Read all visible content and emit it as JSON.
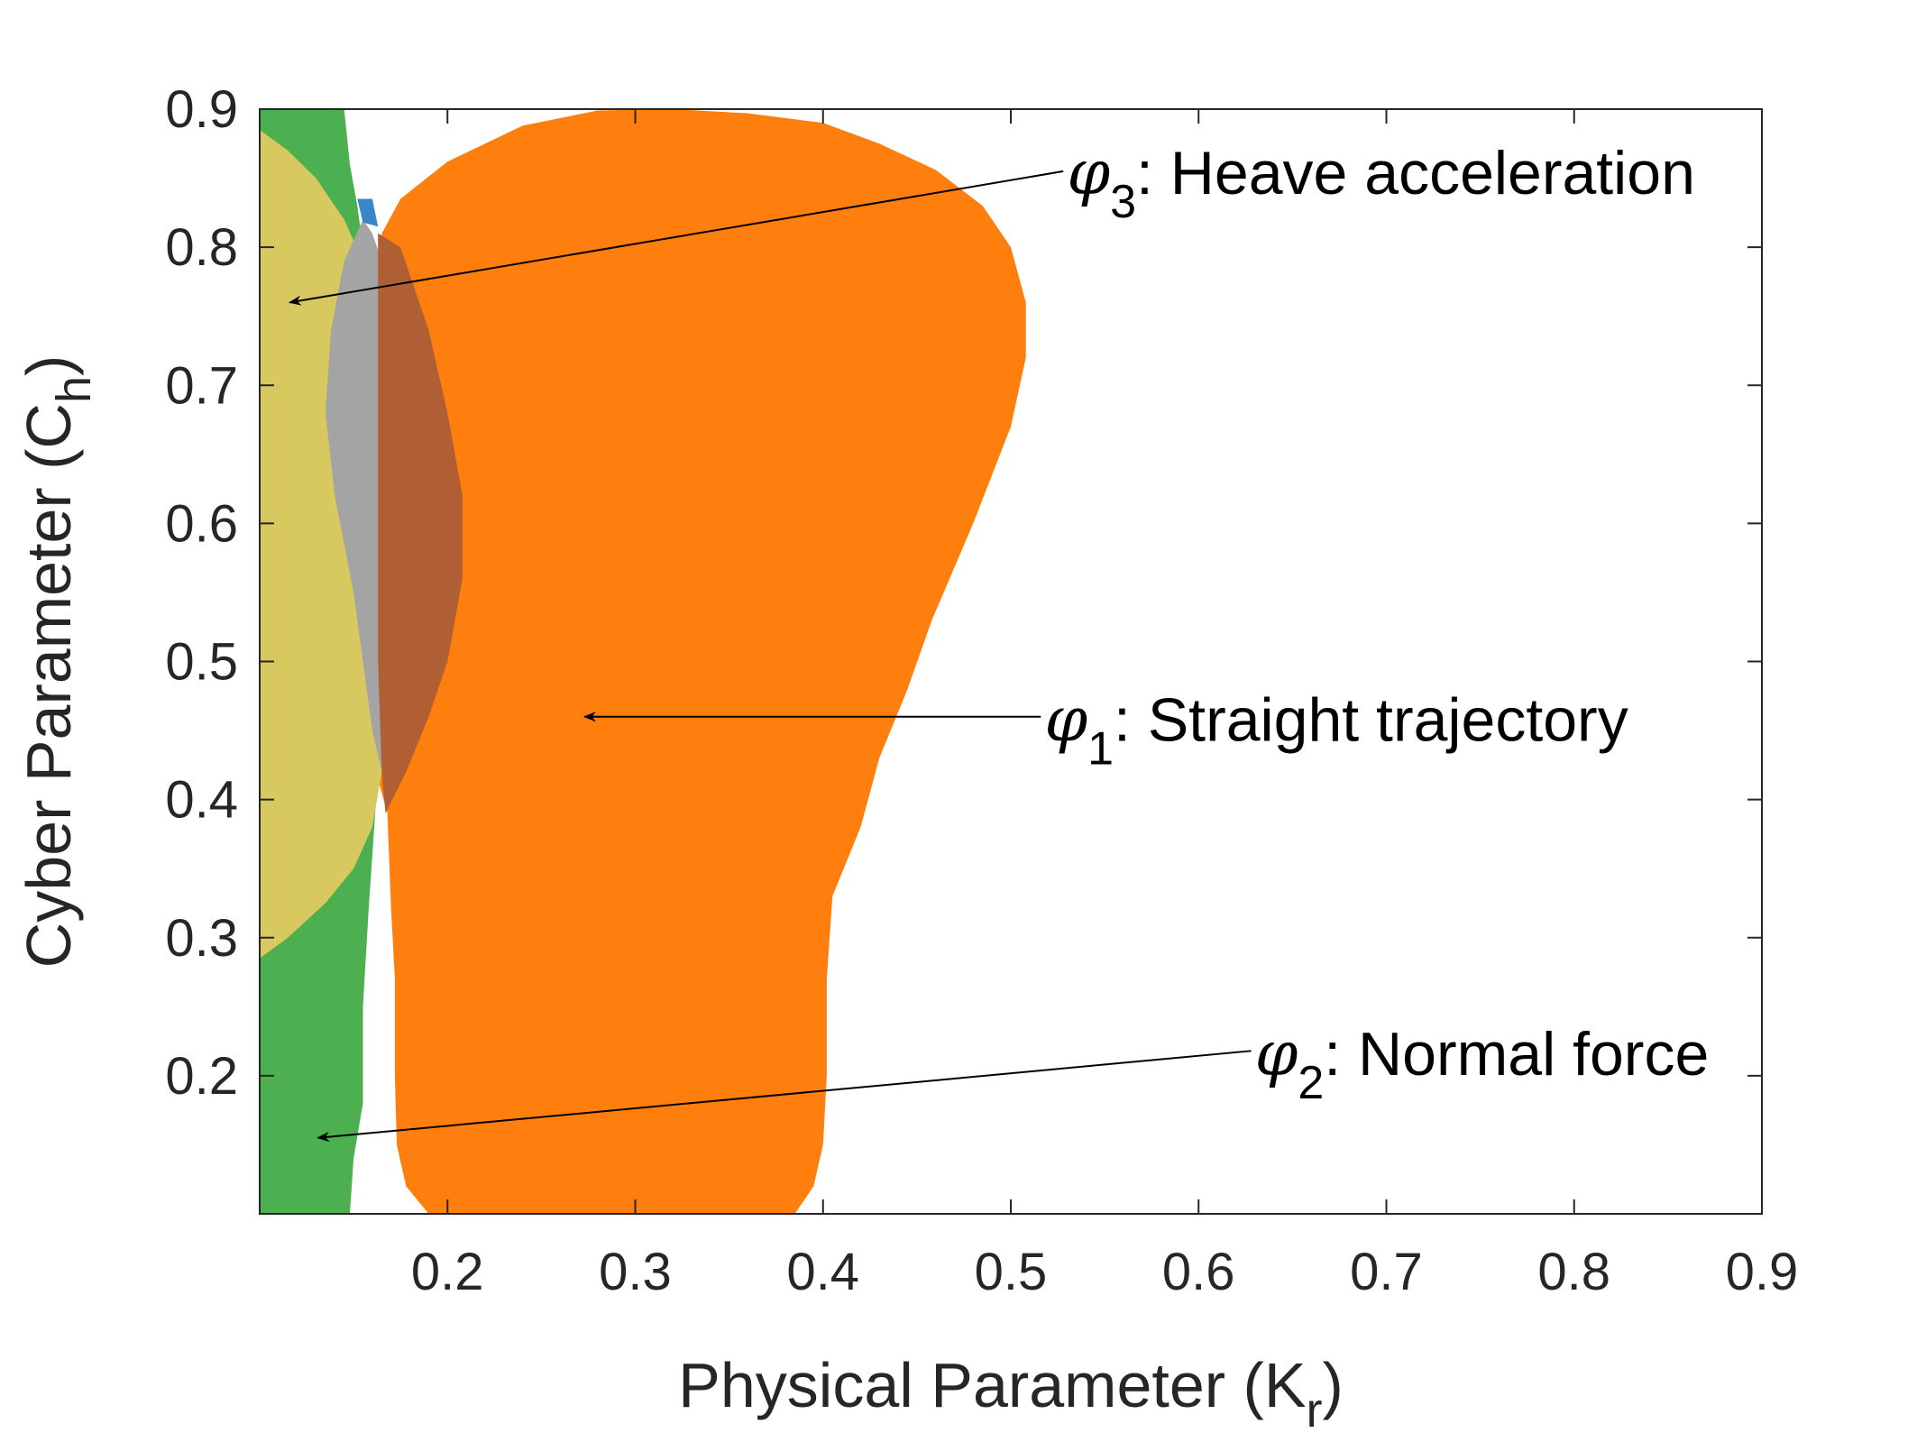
{
  "chart_data": {
    "type": "area",
    "xlabel": "Physical Parameter (K",
    "xlabel_sub": "r",
    "xlabel_close": ")",
    "ylabel": "Cyber Parameter (C",
    "ylabel_sub": "h",
    "ylabel_close": ")",
    "xlim": [
      0.1,
      0.9
    ],
    "ylim": [
      0.1,
      0.9
    ],
    "xticks": [
      "0.2",
      "0.3",
      "0.4",
      "0.5",
      "0.6",
      "0.7",
      "0.8",
      "0.9"
    ],
    "yticks": [
      "0.2",
      "0.3",
      "0.4",
      "0.5",
      "0.6",
      "0.7",
      "0.8",
      "0.9"
    ],
    "grid": false,
    "colors": {
      "phi1": "#ff7f0e",
      "phi2": "#4caf50",
      "phi3": "#d8c860",
      "overlap13": "#b05f35",
      "overlap23": "#a4a4a4",
      "overlap_all": "#3a86c8"
    },
    "regions": [
      {
        "key": "phi1",
        "boundary": [
          [
            0.165,
            0.81
          ],
          [
            0.175,
            0.835
          ],
          [
            0.2,
            0.862
          ],
          [
            0.24,
            0.888
          ],
          [
            0.28,
            0.899
          ],
          [
            0.32,
            0.9
          ],
          [
            0.36,
            0.897
          ],
          [
            0.4,
            0.89
          ],
          [
            0.43,
            0.875
          ],
          [
            0.46,
            0.856
          ],
          [
            0.485,
            0.83
          ],
          [
            0.5,
            0.8
          ],
          [
            0.508,
            0.76
          ],
          [
            0.508,
            0.72
          ],
          [
            0.5,
            0.67
          ],
          [
            0.48,
            0.6
          ],
          [
            0.458,
            0.53
          ],
          [
            0.445,
            0.48
          ],
          [
            0.43,
            0.43
          ],
          [
            0.42,
            0.38
          ],
          [
            0.405,
            0.33
          ],
          [
            0.402,
            0.27
          ],
          [
            0.402,
            0.2
          ],
          [
            0.4,
            0.15
          ],
          [
            0.395,
            0.12
          ],
          [
            0.385,
            0.1
          ],
          [
            0.19,
            0.1
          ],
          [
            0.178,
            0.12
          ],
          [
            0.173,
            0.15
          ],
          [
            0.172,
            0.2
          ],
          [
            0.172,
            0.27
          ],
          [
            0.17,
            0.32
          ],
          [
            0.168,
            0.39
          ],
          [
            0.162,
            0.42
          ],
          [
            0.162,
            0.5
          ],
          [
            0.162,
            0.6
          ],
          [
            0.163,
            0.7
          ],
          [
            0.163,
            0.78
          ]
        ]
      },
      {
        "key": "phi2",
        "boundary": [
          [
            0.1,
            0.9
          ],
          [
            0.145,
            0.9
          ],
          [
            0.148,
            0.86
          ],
          [
            0.152,
            0.83
          ],
          [
            0.155,
            0.8
          ],
          [
            0.158,
            0.7
          ],
          [
            0.16,
            0.6
          ],
          [
            0.162,
            0.5
          ],
          [
            0.162,
            0.4
          ],
          [
            0.158,
            0.32
          ],
          [
            0.155,
            0.25
          ],
          [
            0.155,
            0.18
          ],
          [
            0.15,
            0.14
          ],
          [
            0.148,
            0.1
          ],
          [
            0.1,
            0.1
          ]
        ]
      },
      {
        "key": "phi3",
        "boundary": [
          [
            0.1,
            0.885
          ],
          [
            0.115,
            0.87
          ],
          [
            0.13,
            0.85
          ],
          [
            0.145,
            0.82
          ],
          [
            0.155,
            0.79
          ],
          [
            0.162,
            0.75
          ],
          [
            0.165,
            0.7
          ],
          [
            0.167,
            0.6
          ],
          [
            0.167,
            0.5
          ],
          [
            0.165,
            0.42
          ],
          [
            0.16,
            0.38
          ],
          [
            0.15,
            0.35
          ],
          [
            0.135,
            0.325
          ],
          [
            0.115,
            0.3
          ],
          [
            0.1,
            0.285
          ]
        ]
      },
      {
        "key": "overlap23",
        "boundary": [
          [
            0.155,
            0.82
          ],
          [
            0.16,
            0.81
          ],
          [
            0.165,
            0.79
          ],
          [
            0.165,
            0.7
          ],
          [
            0.167,
            0.6
          ],
          [
            0.167,
            0.5
          ],
          [
            0.165,
            0.42
          ],
          [
            0.16,
            0.45
          ],
          [
            0.155,
            0.5
          ],
          [
            0.15,
            0.55
          ],
          [
            0.14,
            0.62
          ],
          [
            0.135,
            0.68
          ],
          [
            0.138,
            0.74
          ],
          [
            0.145,
            0.79
          ]
        ]
      },
      {
        "key": "overlap13",
        "boundary": [
          [
            0.163,
            0.81
          ],
          [
            0.175,
            0.8
          ],
          [
            0.19,
            0.74
          ],
          [
            0.2,
            0.68
          ],
          [
            0.208,
            0.62
          ],
          [
            0.208,
            0.56
          ],
          [
            0.2,
            0.5
          ],
          [
            0.19,
            0.46
          ],
          [
            0.178,
            0.42
          ],
          [
            0.167,
            0.39
          ],
          [
            0.165,
            0.42
          ],
          [
            0.163,
            0.5
          ],
          [
            0.163,
            0.6
          ],
          [
            0.163,
            0.7
          ]
        ]
      },
      {
        "key": "overlap_all",
        "boundary": [
          [
            0.152,
            0.835
          ],
          [
            0.16,
            0.835
          ],
          [
            0.163,
            0.815
          ],
          [
            0.155,
            0.818
          ]
        ]
      }
    ],
    "annotations": [
      {
        "id": "phi3",
        "symbol": "φ",
        "sub": "3",
        "text": ": Heave acceleration",
        "label_at": [
          0.53,
          0.853
        ],
        "arrow_from": [
          0.528,
          0.855
        ],
        "arrow_to": [
          0.116,
          0.76
        ]
      },
      {
        "id": "phi1",
        "symbol": "φ",
        "sub": "1",
        "text": ": Straight trajectory",
        "label_at": [
          0.518,
          0.457
        ],
        "arrow_from": [
          0.516,
          0.46
        ],
        "arrow_to": [
          0.273,
          0.46
        ]
      },
      {
        "id": "phi2",
        "symbol": "φ",
        "sub": "2",
        "text": ": Normal force",
        "label_at": [
          0.63,
          0.215
        ],
        "arrow_from": [
          0.628,
          0.218
        ],
        "arrow_to": [
          0.131,
          0.155
        ]
      }
    ]
  }
}
